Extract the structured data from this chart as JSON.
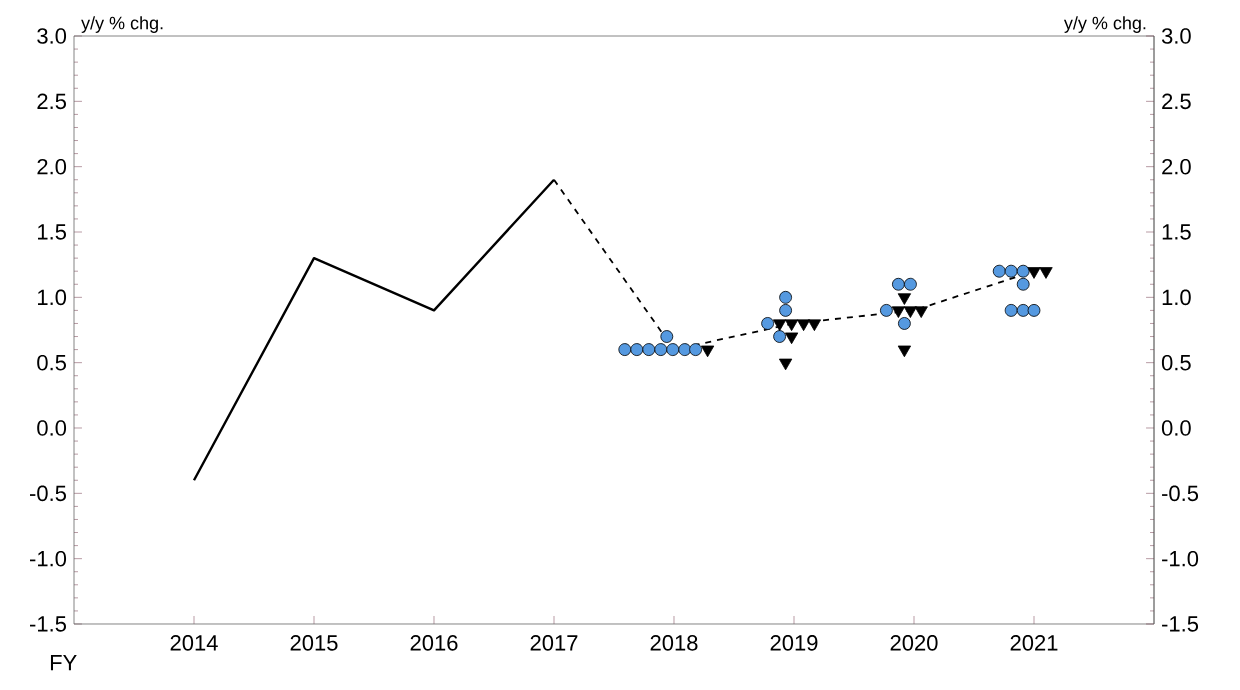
{
  "chart_data": {
    "type": "line",
    "xlabel": "FY",
    "ylabel": "y/y % chg.",
    "y2label": "y/y % chg.",
    "xlim": [
      2013,
      2022
    ],
    "xticks": [
      2014,
      2015,
      2016,
      2017,
      2018,
      2019,
      2020,
      2021
    ],
    "ylim": [
      -1.5,
      3.0
    ],
    "yticks": [
      {
        "value": -1.5,
        "label": "-1.5"
      },
      {
        "value": -1.0,
        "label": "-1.0"
      },
      {
        "value": -0.5,
        "label": "-0.5"
      },
      {
        "value": 0,
        "label": "0.0"
      },
      {
        "value": 0.5,
        "label": "0.5"
      },
      {
        "value": 1.0,
        "label": "1.0"
      },
      {
        "value": 1.5,
        "label": "1.5"
      },
      {
        "value": 2.0,
        "label": "2.0"
      },
      {
        "value": 2.5,
        "label": "2.5"
      },
      {
        "value": 3.0,
        "label": "3.0"
      }
    ],
    "y2lim": [
      -1.5,
      3.0
    ],
    "y2ticks": [
      {
        "value": -1.5,
        "label": "-1.5"
      },
      {
        "value": -1.0,
        "label": "-1.0"
      },
      {
        "value": -0.5,
        "label": "-0.5"
      },
      {
        "value": 0,
        "label": "0.0"
      },
      {
        "value": 0.5,
        "label": "0.5"
      },
      {
        "value": 1.0,
        "label": "1.0"
      },
      {
        "value": 1.5,
        "label": "1.5"
      },
      {
        "value": 2.0,
        "label": "2.0"
      },
      {
        "value": 2.5,
        "label": "2.5"
      },
      {
        "value": 3.0,
        "label": "3.0"
      }
    ],
    "grid": false,
    "series": [
      {
        "type": "line",
        "color": "#000000",
        "line_style": "solid",
        "marker": "none",
        "x": [
          2014,
          2015,
          2016,
          2017
        ],
        "values": [
          -0.4,
          1.3,
          0.9,
          1.9
        ]
      },
      {
        "type": "line",
        "color": "#000000",
        "line_style": "dashed",
        "marker": "none",
        "x": [
          2017,
          2018,
          2019,
          2020,
          2021
        ],
        "values": [
          1.9,
          0.6,
          0.8,
          0.9,
          1.2
        ]
      },
      {
        "type": "scatter",
        "color": "#5599e0",
        "marker": "circle",
        "x": [
          2017.59,
          2017.69,
          2017.79,
          2017.89,
          2017.99,
          2018.09,
          2018.18,
          2017.94,
          2018.93,
          2018.93,
          2018.78,
          2018.88,
          2019.87,
          2019.97,
          2019.77,
          2019.92,
          2020.71,
          2020.81,
          2020.91,
          2020.91,
          2020.81,
          2020.91,
          2021.0
        ],
        "values": [
          0.6,
          0.6,
          0.6,
          0.6,
          0.6,
          0.6,
          0.6,
          0.7,
          1.0,
          0.9,
          0.8,
          0.7,
          1.1,
          1.1,
          0.9,
          0.8,
          1.2,
          1.2,
          1.2,
          1.1,
          0.9,
          0.9,
          0.9
        ]
      },
      {
        "type": "scatter",
        "color": "#000000",
        "marker": "triangle",
        "x": [
          2018.28,
          2018.88,
          2018.98,
          2019.08,
          2019.17,
          2018.98,
          2018.93,
          2019.92,
          2019.87,
          2019.97,
          2020.06,
          2019.92,
          2021.0,
          2021.1
        ],
        "values": [
          0.6,
          0.8,
          0.8,
          0.8,
          0.8,
          0.7,
          0.5,
          1.0,
          0.9,
          0.9,
          0.9,
          0.6,
          1.2,
          1.2
        ]
      }
    ]
  }
}
